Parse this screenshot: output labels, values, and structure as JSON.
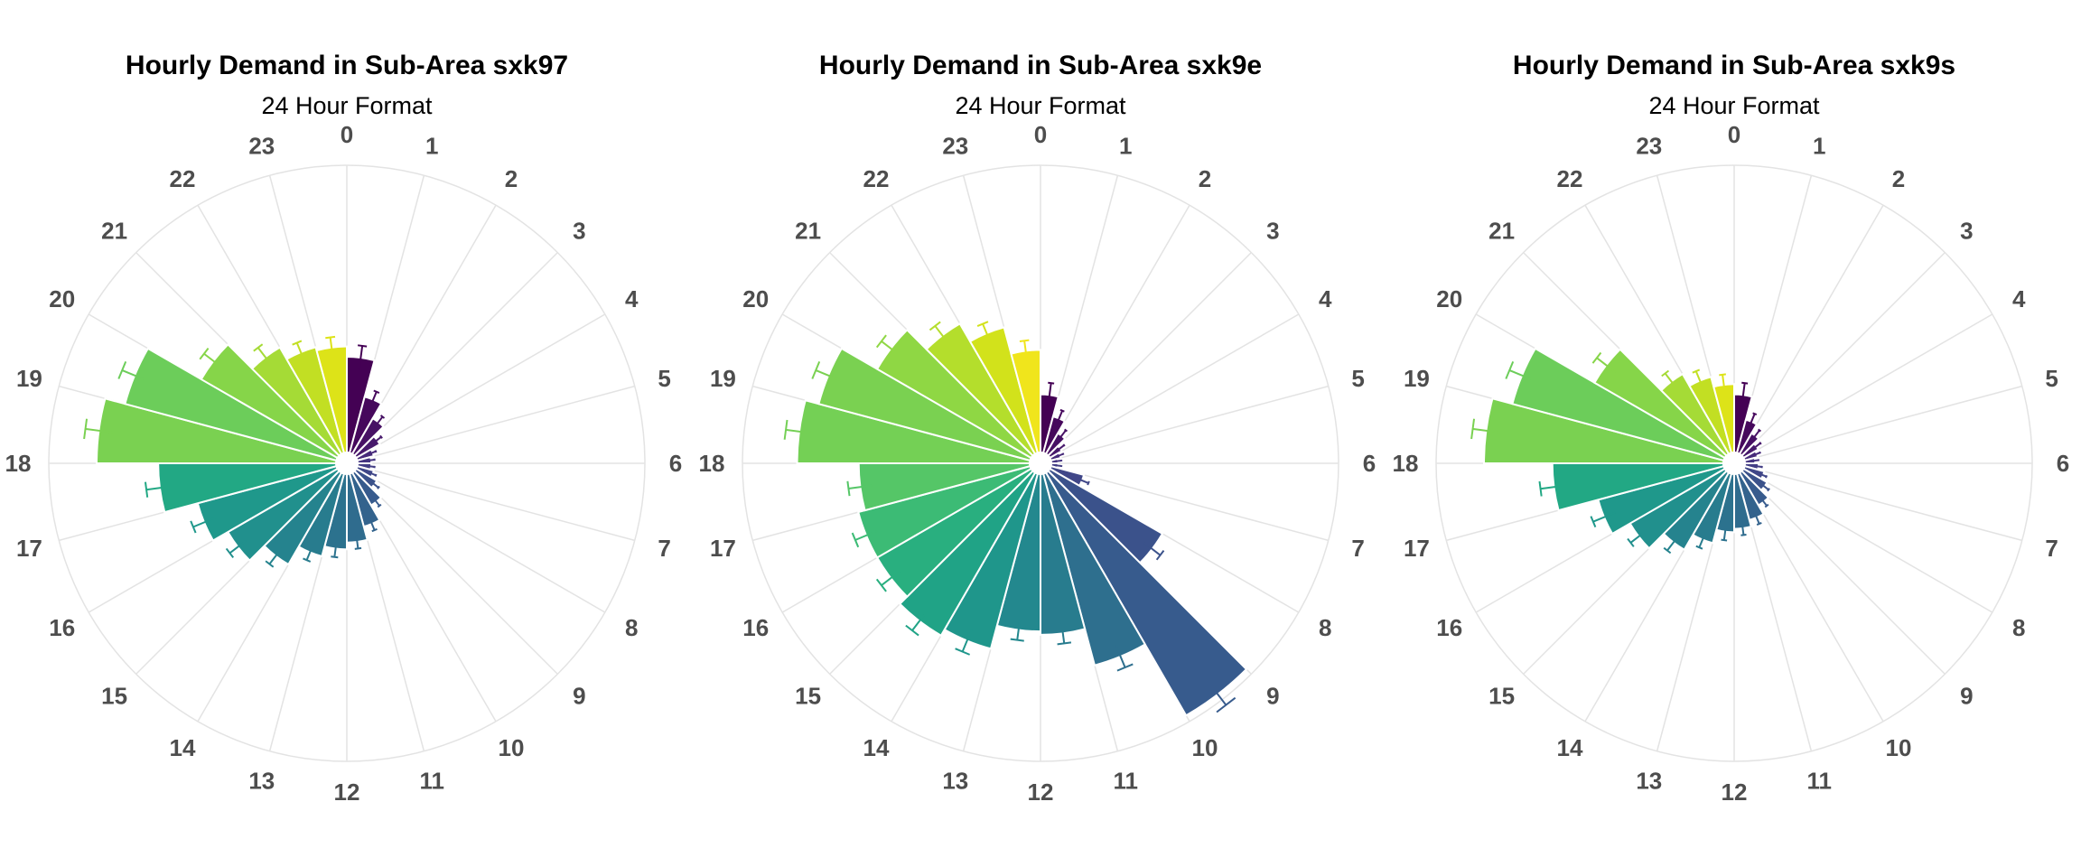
{
  "chart_data": [
    {
      "type": "bar",
      "polar": true,
      "title": "Hourly Demand in Sub-Area sxk97",
      "subtitle": "24 Hour Format",
      "categories": [
        "0",
        "1",
        "2",
        "3",
        "4",
        "5",
        "6",
        "7",
        "8",
        "9",
        "10",
        "11",
        "12",
        "13",
        "14",
        "15",
        "16",
        "17",
        "18",
        "19",
        "20",
        "21",
        "22",
        "23"
      ],
      "values": [
        0.28,
        0.17,
        0.12,
        0.08,
        0.05,
        0.04,
        0.04,
        0.05,
        0.07,
        0.11,
        0.16,
        0.2,
        0.22,
        0.25,
        0.31,
        0.37,
        0.42,
        0.52,
        0.7,
        0.64,
        0.46,
        0.36,
        0.32,
        0.31
      ],
      "errors": [
        0.035,
        0.025,
        0.02,
        0.015,
        0.01,
        0.01,
        0.01,
        0.01,
        0.015,
        0.015,
        0.02,
        0.02,
        0.025,
        0.025,
        0.03,
        0.03,
        0.035,
        0.04,
        0.04,
        0.04,
        0.035,
        0.035,
        0.03,
        0.03
      ],
      "ylim": [
        0,
        0.84
      ],
      "colors": [
        "#440154",
        "#46085c",
        "#471164",
        "#481a6c",
        "#472a7a",
        "#453581",
        "#433e85",
        "#404788",
        "#3b528b",
        "#375b8d",
        "#33638d",
        "#2f6c8e",
        "#2c728e",
        "#287c8e",
        "#25838e",
        "#21908d",
        "#1f988b",
        "#22a884",
        "#7ad151",
        "#6ccd5a",
        "#86d549",
        "#a5db36",
        "#c2df23",
        "#dde318"
      ]
    },
    {
      "type": "bar",
      "polar": true,
      "title": "Hourly Demand in Sub-Area sxk9e",
      "subtitle": "24 Hour Format",
      "categories": [
        "0",
        "1",
        "2",
        "3",
        "4",
        "5",
        "6",
        "7",
        "8",
        "9",
        "10",
        "11",
        "12",
        "13",
        "14",
        "15",
        "16",
        "17",
        "18",
        "19",
        "20",
        "21",
        "22",
        "23"
      ],
      "values": [
        0.17,
        0.11,
        0.07,
        0.04,
        0.03,
        0.02,
        0.02,
        0.1,
        0.38,
        0.82,
        0.58,
        0.47,
        0.46,
        0.53,
        0.55,
        0.52,
        0.52,
        0.5,
        0.68,
        0.64,
        0.52,
        0.44,
        0.38,
        0.3
      ],
      "errors": [
        0.035,
        0.025,
        0.02,
        0.015,
        0.01,
        0.01,
        0.01,
        0.02,
        0.03,
        0.04,
        0.035,
        0.03,
        0.03,
        0.035,
        0.035,
        0.035,
        0.035,
        0.035,
        0.04,
        0.04,
        0.035,
        0.035,
        0.03,
        0.03
      ],
      "ylim": [
        0,
        0.84
      ],
      "colors": [
        "#440154",
        "#46085c",
        "#471164",
        "#481a6c",
        "#472a7a",
        "#453581",
        "#433e85",
        "#404788",
        "#3b528b",
        "#375b8d",
        "#2e6f8e",
        "#287c8e",
        "#23888e",
        "#1f968b",
        "#20a386",
        "#29af7f",
        "#3cbb75",
        "#55c667",
        "#74d055",
        "#7ad151",
        "#8fd744",
        "#b4de2c",
        "#d2e21b",
        "#f0e51c"
      ]
    },
    {
      "type": "bar",
      "polar": true,
      "title": "Hourly Demand in Sub-Area sxk9s",
      "subtitle": "24 Hour Format",
      "categories": [
        "0",
        "1",
        "2",
        "3",
        "4",
        "5",
        "6",
        "7",
        "8",
        "9",
        "10",
        "11",
        "12",
        "13",
        "14",
        "15",
        "16",
        "17",
        "18",
        "19",
        "20",
        "21",
        "22",
        "23"
      ],
      "values": [
        0.17,
        0.1,
        0.07,
        0.05,
        0.04,
        0.03,
        0.04,
        0.06,
        0.08,
        0.11,
        0.14,
        0.16,
        0.17,
        0.21,
        0.26,
        0.32,
        0.38,
        0.5,
        0.7,
        0.64,
        0.44,
        0.27,
        0.23,
        0.2
      ],
      "errors": [
        0.035,
        0.025,
        0.02,
        0.015,
        0.01,
        0.01,
        0.01,
        0.01,
        0.015,
        0.015,
        0.02,
        0.02,
        0.025,
        0.025,
        0.03,
        0.03,
        0.035,
        0.04,
        0.04,
        0.04,
        0.035,
        0.03,
        0.03,
        0.03
      ],
      "ylim": [
        0,
        0.84
      ],
      "colors": [
        "#440154",
        "#46085c",
        "#471164",
        "#481a6c",
        "#472a7a",
        "#453581",
        "#433e85",
        "#404788",
        "#3b528b",
        "#375b8d",
        "#33638d",
        "#2f6c8e",
        "#2c728e",
        "#287c8e",
        "#25838e",
        "#21908d",
        "#1f988b",
        "#22a884",
        "#7ad151",
        "#6ccd5a",
        "#86d549",
        "#a5db36",
        "#c2df23",
        "#dde318"
      ]
    }
  ]
}
